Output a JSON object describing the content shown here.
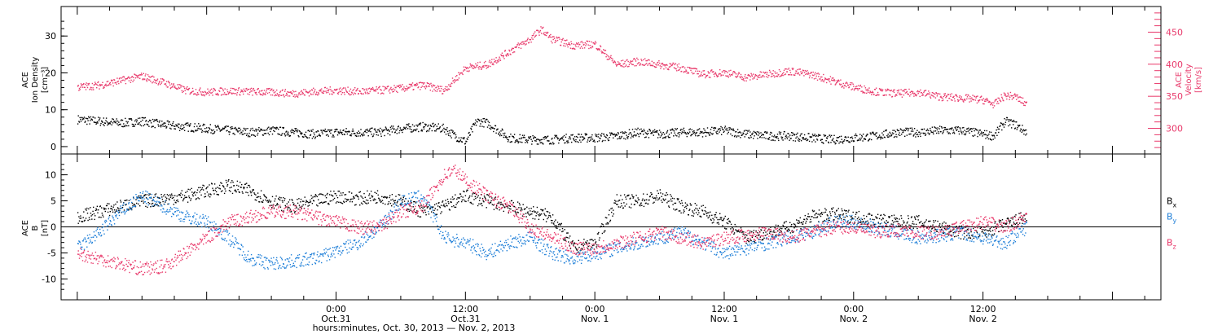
{
  "figure": {
    "x_axis_title": "hours:minutes, Oct. 30, 2013 — Nov. 2, 2013"
  },
  "colors": {
    "axis": "#000000",
    "density": "#000000",
    "velocity": "#e8386a",
    "bx": "#000000",
    "by": "#1f7fd8",
    "bz": "#e8386a"
  },
  "chart_data": [
    {
      "type": "scatter",
      "panel": "plasma",
      "ylabel_left": [
        "ACE",
        "Ion Density",
        "[cm⁻³]"
      ],
      "ylabel_right": [
        "ACE",
        "Velocity",
        "[km/s]"
      ],
      "ylim_left": [
        -2,
        38
      ],
      "yticks_left": [
        "0",
        "10",
        "20",
        "30"
      ],
      "yticks_left_values": [
        0,
        10,
        20,
        30
      ],
      "ylim_right": [
        260,
        490
      ],
      "yticks_right": [
        "300",
        "350",
        "400",
        "450"
      ],
      "yticks_right_values": [
        300,
        350,
        400,
        450
      ],
      "x_unit": "hours since Oct. 30, 2013 00:00",
      "series": [
        {
          "name": "Ion Density",
          "axis": "left",
          "x": [
            0,
            2,
            4,
            6,
            8,
            10,
            12,
            14,
            16,
            18,
            20,
            22,
            24,
            26,
            28,
            30,
            32,
            34,
            35,
            36,
            37,
            38,
            40,
            42,
            44,
            46,
            48,
            50,
            52,
            54,
            56,
            58,
            60,
            62,
            64,
            66,
            68,
            70,
            72,
            74,
            76,
            78,
            80,
            82,
            84,
            85,
            86,
            87,
            88
          ],
          "values": [
            7.5,
            7,
            6.5,
            7,
            6,
            5.5,
            5,
            4.5,
            4,
            4.5,
            4,
            3.5,
            4,
            4,
            4,
            5,
            5.5,
            5,
            3,
            1.5,
            7,
            6.5,
            2.5,
            2,
            2,
            2.5,
            2.5,
            3,
            4,
            3.5,
            4,
            4,
            4.5,
            3.5,
            3,
            3,
            2.5,
            2,
            2.5,
            3,
            4,
            4,
            4.5,
            4.5,
            3.5,
            3,
            7,
            6,
            4
          ]
        },
        {
          "name": "Velocity",
          "axis": "right",
          "x": [
            0,
            2,
            4,
            6,
            8,
            10,
            12,
            14,
            16,
            18,
            20,
            22,
            24,
            26,
            28,
            30,
            32,
            34,
            36,
            38,
            40,
            42,
            43,
            44,
            46,
            48,
            50,
            52,
            54,
            56,
            58,
            60,
            62,
            64,
            66,
            68,
            70,
            72,
            74,
            76,
            78,
            80,
            82,
            84,
            85,
            86,
            87,
            88
          ],
          "values": [
            365,
            368,
            375,
            382,
            372,
            360,
            357,
            359,
            358,
            357,
            355,
            358,
            360,
            358,
            360,
            363,
            368,
            360,
            395,
            400,
            420,
            440,
            455,
            440,
            430,
            432,
            400,
            405,
            400,
            395,
            385,
            388,
            380,
            385,
            390,
            385,
            375,
            365,
            358,
            355,
            357,
            350,
            348,
            345,
            338,
            352,
            350,
            338
          ]
        }
      ]
    },
    {
      "type": "scatter",
      "panel": "magnetic field",
      "ylabel_left": [
        "ACE",
        "B",
        "[nT]"
      ],
      "ylim": [
        -14,
        14
      ],
      "yticks": [
        "-10",
        "-5",
        "0",
        "5",
        "10"
      ],
      "yticks_values": [
        -10,
        -5,
        0,
        5,
        10
      ],
      "zero_line": true,
      "x_unit": "hours since Oct. 30, 2013 00:00",
      "legend_position": "right",
      "series": [
        {
          "name": "Bx",
          "label_main": "B",
          "label_sub": "x",
          "x": [
            0,
            2,
            4,
            6,
            8,
            10,
            12,
            14,
            16,
            18,
            20,
            22,
            24,
            26,
            28,
            30,
            32,
            34,
            36,
            38,
            40,
            42,
            44,
            46,
            48,
            50,
            52,
            54,
            56,
            58,
            60,
            62,
            64,
            66,
            68,
            70,
            72,
            74,
            76,
            78,
            80,
            82,
            84,
            86,
            88
          ],
          "values": [
            2,
            3,
            4,
            5,
            5.5,
            6,
            7,
            8,
            7,
            5,
            4,
            5,
            6,
            5.5,
            6,
            5,
            3,
            4,
            6,
            5,
            4,
            3,
            2,
            -4,
            -3,
            5,
            5,
            6,
            4,
            3,
            1,
            -2,
            -1,
            0,
            2,
            2.5,
            2,
            1.5,
            1,
            1,
            0,
            -1,
            -1,
            0.5,
            2
          ]
        },
        {
          "name": "By",
          "label_main": "B",
          "label_sub": "y",
          "x": [
            0,
            2,
            4,
            6,
            8,
            10,
            12,
            14,
            16,
            18,
            20,
            22,
            24,
            26,
            28,
            30,
            32,
            34,
            36,
            38,
            40,
            42,
            44,
            46,
            48,
            50,
            52,
            54,
            56,
            58,
            60,
            62,
            64,
            66,
            68,
            70,
            72,
            74,
            76,
            78,
            80,
            82,
            84,
            86,
            88
          ],
          "values": [
            -4,
            -1,
            3,
            6,
            4,
            2,
            1,
            -2,
            -6,
            -7,
            -6.5,
            -6,
            -4.5,
            -3,
            0,
            5,
            6,
            -2,
            -3,
            -5,
            -3,
            -2,
            -5,
            -6,
            -5,
            -4,
            -3,
            -2,
            -1,
            -3,
            -5,
            -4,
            -3,
            -2,
            -1,
            1,
            1,
            0,
            -1,
            -2,
            -1.5,
            -1,
            -2,
            -3,
            0
          ]
        },
        {
          "name": "Bz",
          "label_main": "B",
          "label_sub": "z",
          "x": [
            0,
            2,
            4,
            6,
            8,
            10,
            12,
            14,
            16,
            18,
            20,
            22,
            24,
            26,
            28,
            30,
            32,
            34,
            35,
            36,
            38,
            40,
            42,
            44,
            46,
            48,
            50,
            52,
            54,
            56,
            58,
            60,
            62,
            64,
            66,
            68,
            70,
            72,
            74,
            76,
            78,
            80,
            82,
            84,
            86,
            88
          ],
          "values": [
            -5,
            -6,
            -7,
            -8,
            -7.5,
            -5,
            -2,
            1,
            2,
            3,
            3,
            2,
            1,
            0,
            0,
            3,
            4,
            10,
            11,
            9,
            6,
            4,
            0,
            -2,
            -4,
            -4,
            -3,
            -2,
            -1,
            -2,
            -3,
            -2,
            -1.5,
            -1,
            -2,
            -1,
            0,
            0,
            -1,
            -0.5,
            -1,
            -1,
            0,
            1,
            0,
            2
          ]
        }
      ]
    }
  ],
  "x_axis": {
    "range_hours": [
      -1.5,
      100.5
    ],
    "major_ticks": [
      {
        "hour": 24,
        "time": "0:00",
        "date": "Oct.31"
      },
      {
        "hour": 36,
        "time": "12:00",
        "date": "Oct.31"
      },
      {
        "hour": 48,
        "time": "0:00",
        "date": "Nov. 1"
      },
      {
        "hour": 60,
        "time": "12:00",
        "date": "Nov. 1"
      },
      {
        "hour": 72,
        "time": "0:00",
        "date": "Nov. 2"
      },
      {
        "hour": 84,
        "time": "12:00",
        "date": "Nov. 2"
      }
    ]
  }
}
